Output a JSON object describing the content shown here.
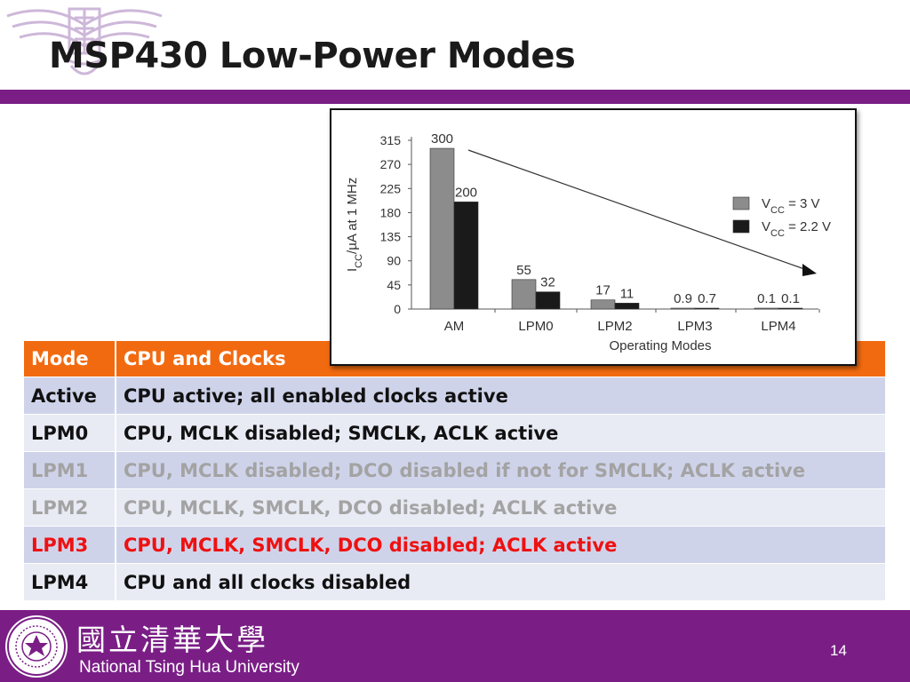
{
  "slide": {
    "title": "MSP430 Low-Power Modes",
    "page_number": "14"
  },
  "table": {
    "header": {
      "mode": "Mode",
      "clocks": "CPU and Clocks"
    },
    "rows": [
      {
        "mode": "Active",
        "clocks": "CPU active; all enabled clocks active",
        "tone": "normal"
      },
      {
        "mode": "LPM0",
        "clocks": "CPU, MCLK disabled; SMCLK, ACLK active",
        "tone": "normal"
      },
      {
        "mode": "LPM1",
        "clocks": "CPU, MCLK disabled; DCO disabled if not for SMCLK; ACLK active",
        "tone": "muted"
      },
      {
        "mode": "LPM2",
        "clocks": "CPU, MCLK, SMCLK, DCO disabled; ACLK active",
        "tone": "muted"
      },
      {
        "mode": "LPM3",
        "clocks": "CPU, MCLK, SMCLK, DCO disabled; ACLK active",
        "tone": "red"
      },
      {
        "mode": "LPM4",
        "clocks": "CPU and all clocks disabled",
        "tone": "normal"
      }
    ]
  },
  "footer": {
    "university_cn": "國立清華大學",
    "university_en": "National Tsing Hua University"
  },
  "colors": {
    "purple": "#7a1e86",
    "orange_header": "#f26a10",
    "row_odd": "#cfd3ea",
    "row_even": "#e8eaf4",
    "red_text": "#ee1111",
    "muted_text": "#a3a3a3",
    "bar_3v": "#8c8c8c",
    "bar_2v2": "#1a1a1a"
  },
  "chart_data": {
    "type": "bar",
    "categories": [
      "AM",
      "LPM0",
      "LPM2",
      "LPM3",
      "LPM4"
    ],
    "series": [
      {
        "name": "VCC = 3 V",
        "values": [
          300,
          55,
          17,
          0.9,
          0.1
        ],
        "labels": [
          "300",
          "55",
          "17",
          "0.9",
          "0.1"
        ]
      },
      {
        "name": "VCC = 2.2 V",
        "values": [
          200,
          32,
          11,
          0.7,
          0.1
        ],
        "labels": [
          "200",
          "32",
          "11",
          "0.7",
          "0.1"
        ]
      }
    ],
    "legend_position": "right",
    "yticks": [
      "0",
      "45",
      "90",
      "135",
      "180",
      "225",
      "270",
      "315"
    ],
    "ylim": [
      0,
      315
    ],
    "ylabel": "ICC/µA at 1 MHz",
    "ylabel_main": "I",
    "ylabel_sub": "CC",
    "ylabel_rest": "/µA at 1 MHz",
    "xlabel": "Operating Modes",
    "legend": [
      {
        "main": "V",
        "sub": "CC",
        "rest": " = 3 V"
      },
      {
        "main": "V",
        "sub": "CC",
        "rest": " = 2.2 V"
      }
    ],
    "trend_arrow": true,
    "grid": false
  }
}
